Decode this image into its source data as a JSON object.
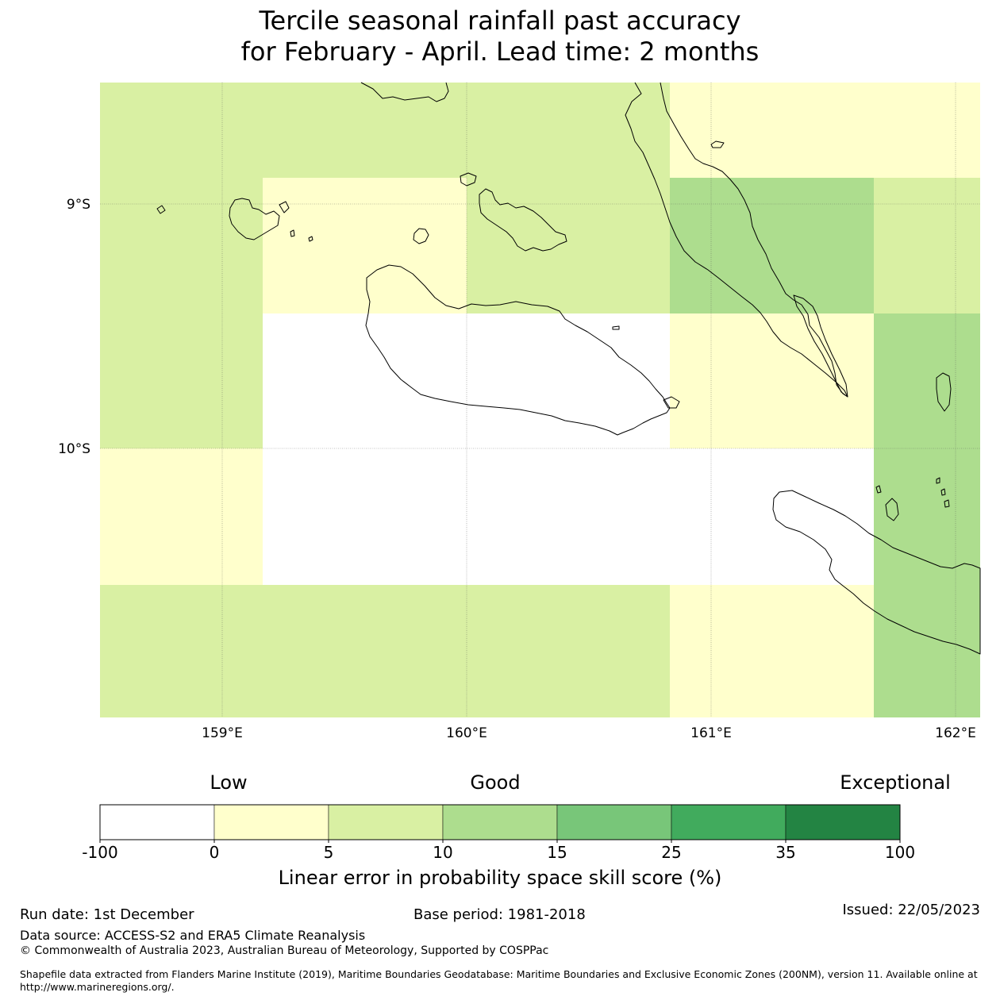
{
  "title": {
    "line1": "Tercile seasonal rainfall past accuracy",
    "line2": "for February - April. Lead time: 2 months"
  },
  "map": {
    "lat_labels": [
      "9°S",
      "10°S"
    ],
    "lon_labels": [
      "159°E",
      "160°E",
      "161°E",
      "162°E"
    ],
    "colors": {
      "class_neg": "#ffffff",
      "class_0_5": "#ffffcc",
      "class_5_10": "#d9f0a3",
      "class_10_15": "#addd8e",
      "class_15_25": "#78c679",
      "class_25_35": "#41ab5d",
      "class_35_100": "#238443"
    },
    "skill_grid": {
      "lon_edges": [
        158.5,
        159.17,
        160.0,
        160.83,
        161.67,
        162.1
      ],
      "lat_edges": [
        -8.5,
        -8.9,
        -9.45,
        -10.0,
        -10.55,
        -11.1
      ],
      "class_by_row": [
        [
          "5-10",
          "5-10",
          "5-10",
          "0-5",
          "0-5"
        ],
        [
          "5-10",
          "0-5",
          "5-10",
          "10-15",
          "5-10"
        ],
        [
          "5-10",
          "negative",
          "negative",
          "0-5",
          "10-15"
        ],
        [
          "0-5",
          "negative",
          "negative",
          "negative",
          "10-15"
        ],
        [
          "5-10",
          "5-10",
          "5-10",
          "0-5",
          "10-15"
        ]
      ]
    }
  },
  "colorbar": {
    "categories": [
      "Low",
      "Good",
      "Exceptional"
    ],
    "ticks": [
      "-100",
      "0",
      "5",
      "10",
      "15",
      "25",
      "35",
      "100"
    ],
    "label": "Linear error in probability space skill score (%)"
  },
  "footer": {
    "run_date": "Run date: 1st December",
    "base_period": "Base period: 1981-2018",
    "issued": "Issued: 22/05/2023",
    "data_source": "Data source: ACCESS-S2 and ERA5 Climate Reanalysis",
    "copyright": "© Commonwealth of Australia 2023, Australian Bureau of Meteorology, Supported by COSPPac",
    "shapefile_line1": "Shapefile data extracted from Flanders Marine Institute (2019), Maritime Boundaries Geodatabase: Maritime Boundaries and Exclusive Economic Zones (200NM), version 11. Available online at",
    "shapefile_line2": "http://www.marineregions.org/."
  }
}
